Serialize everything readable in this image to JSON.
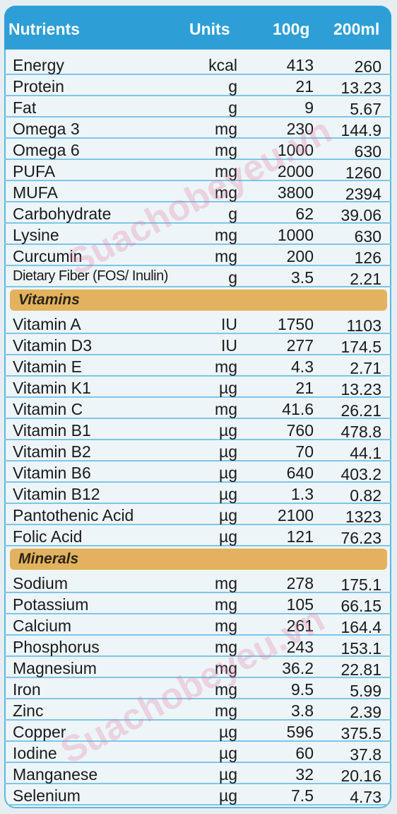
{
  "header": {
    "nutrients": "Nutrients",
    "units": "Units",
    "col100": "100g",
    "col200": "200ml"
  },
  "watermark": "Suachobeyeu.vn",
  "nutrients": [
    {
      "name": "Energy",
      "unit": "kcal",
      "v100": "413",
      "v200": "260"
    },
    {
      "name": "Protein",
      "unit": "g",
      "v100": "21",
      "v200": "13.23"
    },
    {
      "name": "Fat",
      "unit": "g",
      "v100": "9",
      "v200": "5.67"
    },
    {
      "name": "Omega 3",
      "unit": "mg",
      "v100": "230",
      "v200": "144.9"
    },
    {
      "name": "Omega 6",
      "unit": "mg",
      "v100": "1000",
      "v200": "630"
    },
    {
      "name": "PUFA",
      "unit": "mg",
      "v100": "2000",
      "v200": "1260"
    },
    {
      "name": "MUFA",
      "unit": "mg",
      "v100": "3800",
      "v200": "2394"
    },
    {
      "name": "Carbohydrate",
      "unit": "g",
      "v100": "62",
      "v200": "39.06"
    },
    {
      "name": "Lysine",
      "unit": "mg",
      "v100": "1000",
      "v200": "630"
    },
    {
      "name": "Curcumin",
      "unit": "mg",
      "v100": "200",
      "v200": "126"
    },
    {
      "name": "Dietary Fiber (FOS/ Inulin)",
      "unit": "g",
      "v100": "3.5",
      "v200": "2.21"
    }
  ],
  "vitamins_label": "Vitamins",
  "vitamins": [
    {
      "name": "Vitamin A",
      "unit": "IU",
      "v100": "1750",
      "v200": "1103"
    },
    {
      "name": "Vitamin D3",
      "unit": "IU",
      "v100": "277",
      "v200": "174.5"
    },
    {
      "name": "Vitamin E",
      "unit": "mg",
      "v100": "4.3",
      "v200": "2.71"
    },
    {
      "name": "Vitamin K1",
      "unit": "µg",
      "v100": "21",
      "v200": "13.23"
    },
    {
      "name": "Vitamin C",
      "unit": "mg",
      "v100": "41.6",
      "v200": "26.21"
    },
    {
      "name": "Vitamin B1",
      "unit": "µg",
      "v100": "760",
      "v200": "478.8"
    },
    {
      "name": "Vitamin B2",
      "unit": "µg",
      "v100": "70",
      "v200": "44.1"
    },
    {
      "name": "Vitamin B6",
      "unit": "µg",
      "v100": "640",
      "v200": "403.2"
    },
    {
      "name": "Vitamin B12",
      "unit": "µg",
      "v100": "1.3",
      "v200": "0.82"
    },
    {
      "name": "Pantothenic Acid",
      "unit": "µg",
      "v100": "2100",
      "v200": "1323"
    },
    {
      "name": "Folic Acid",
      "unit": "µg",
      "v100": "121",
      "v200": "76.23"
    }
  ],
  "minerals_label": "Minerals",
  "minerals": [
    {
      "name": "Sodium",
      "unit": "mg",
      "v100": "278",
      "v200": "175.1"
    },
    {
      "name": "Potassium",
      "unit": "mg",
      "v100": "105",
      "v200": "66.15"
    },
    {
      "name": "Calcium",
      "unit": "mg",
      "v100": "261",
      "v200": "164.4"
    },
    {
      "name": "Phosphorus",
      "unit": "mg",
      "v100": "243",
      "v200": "153.1"
    },
    {
      "name": "Magnesium",
      "unit": "mg",
      "v100": "36.2",
      "v200": "22.81"
    },
    {
      "name": "Iron",
      "unit": "mg",
      "v100": "9.5",
      "v200": "5.99"
    },
    {
      "name": "Zinc",
      "unit": "mg",
      "v100": "3.8",
      "v200": "2.39"
    },
    {
      "name": "Copper",
      "unit": "µg",
      "v100": "596",
      "v200": "375.5"
    },
    {
      "name": "Iodine",
      "unit": "µg",
      "v100": "60",
      "v200": "37.8"
    },
    {
      "name": "Manganese",
      "unit": "µg",
      "v100": "32",
      "v200": "20.16"
    },
    {
      "name": "Selenium",
      "unit": "µg",
      "v100": "7.5",
      "v200": "4.73"
    }
  ]
}
